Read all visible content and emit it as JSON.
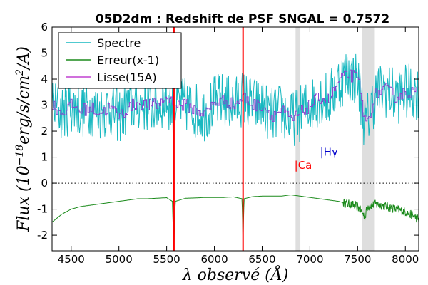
{
  "chart_data": {
    "type": "line",
    "title": "05D2dm : Redshift de PSF SNGAL = 0.7572",
    "xlabel": "λ observé (Å)",
    "ylabel": "Flux (10^-18 erg/s/cm^2/A)",
    "ylabel_parts": {
      "a": "Flux (10",
      "exp": "−18",
      "b": "erg/s/cm",
      "sup2": "2",
      "c": "/A)"
    },
    "xlim": [
      4300,
      8140
    ],
    "ylim": [
      -2.6,
      6
    ],
    "xticks": [
      4500,
      5000,
      5500,
      6000,
      6500,
      7000,
      7500,
      8000
    ],
    "yticks": [
      -2,
      -1,
      0,
      1,
      2,
      3,
      4,
      5,
      6
    ],
    "legend": {
      "placement": "top-left",
      "entries": [
        {
          "label": "Spectre",
          "color": "#17b8c0"
        },
        {
          "label": "Erreur(x-1)",
          "color": "#1a8a1a"
        },
        {
          "label": "Lisse(15A)",
          "color": "#c040d0"
        }
      ]
    },
    "colors": {
      "spectre": "#17b8c0",
      "erreur": "#1a8a1a",
      "lisse": "#8a44d0",
      "skyline": "#ff0000",
      "band": "#dedede",
      "ca": "#ff0000",
      "hy": "#0000cc"
    },
    "series": [
      {
        "name": "Spectre",
        "x": [
          4300,
          4400,
          4500,
          4600,
          4700,
          4800,
          4900,
          5000,
          5100,
          5200,
          5300,
          5400,
          5500,
          5550,
          5600,
          5700,
          5800,
          5900,
          6000,
          6100,
          6200,
          6300,
          6400,
          6500,
          6600,
          6700,
          6800,
          6900,
          7000,
          7100,
          7200,
          7300,
          7400,
          7500,
          7580,
          7650,
          7700,
          7800,
          7900,
          8000,
          8100,
          8140
        ],
        "y": [
          3.0,
          2.7,
          3.0,
          2.8,
          2.9,
          2.7,
          2.9,
          2.6,
          2.9,
          3.1,
          3.0,
          3.0,
          3.3,
          2.9,
          3.0,
          3.0,
          2.8,
          2.7,
          3.1,
          3.2,
          3.0,
          3.3,
          3.0,
          3.0,
          2.6,
          2.8,
          2.4,
          2.7,
          3.0,
          3.3,
          3.2,
          3.9,
          4.2,
          4.0,
          2.2,
          3.0,
          3.5,
          3.6,
          3.3,
          3.5,
          3.5,
          3.5
        ],
        "noise": 1.1
      },
      {
        "name": "Erreur(x-1)",
        "x": [
          4300,
          4400,
          4500,
          4600,
          4700,
          4800,
          4900,
          5000,
          5100,
          5200,
          5300,
          5400,
          5500,
          5560,
          5575,
          5590,
          5700,
          5800,
          5900,
          6000,
          6100,
          6200,
          6290,
          6300,
          6310,
          6400,
          6500,
          6600,
          6700,
          6800,
          6900,
          7000,
          7100,
          7200,
          7300,
          7400,
          7500,
          7580,
          7600,
          7700,
          7800,
          7900,
          8000,
          8100,
          8140
        ],
        "y": [
          -1.5,
          -1.2,
          -1.0,
          -0.9,
          -0.85,
          -0.8,
          -0.75,
          -0.7,
          -0.65,
          -0.6,
          -0.6,
          -0.58,
          -0.56,
          -0.7,
          -2.6,
          -0.7,
          -0.58,
          -0.57,
          -0.55,
          -0.55,
          -0.55,
          -0.53,
          -0.6,
          -2.3,
          -0.6,
          -0.52,
          -0.5,
          -0.5,
          -0.5,
          -0.45,
          -0.5,
          -0.55,
          -0.6,
          -0.65,
          -0.7,
          -0.8,
          -0.9,
          -1.3,
          -0.9,
          -0.8,
          -0.9,
          -1.0,
          -1.1,
          -1.3,
          -1.4
        ]
      },
      {
        "name": "Lisse(15A)",
        "x": [
          4300,
          4400,
          4500,
          4600,
          4700,
          4800,
          4900,
          5000,
          5100,
          5200,
          5300,
          5400,
          5500,
          5600,
          5700,
          5800,
          5900,
          6000,
          6100,
          6200,
          6300,
          6400,
          6500,
          6600,
          6700,
          6800,
          6900,
          7000,
          7100,
          7200,
          7300,
          7400,
          7500,
          7580,
          7650,
          7700,
          7800,
          7900,
          8000,
          8100,
          8140
        ],
        "y": [
          3.0,
          2.7,
          3.0,
          2.8,
          2.9,
          2.7,
          2.9,
          2.6,
          2.9,
          3.1,
          3.0,
          3.0,
          3.3,
          3.0,
          3.0,
          2.8,
          2.7,
          3.1,
          3.2,
          3.0,
          3.3,
          3.0,
          3.0,
          2.6,
          2.8,
          2.4,
          2.7,
          3.0,
          3.3,
          3.2,
          3.9,
          4.2,
          4.0,
          2.2,
          3.0,
          3.5,
          3.6,
          3.3,
          3.5,
          3.5,
          3.5
        ]
      }
    ],
    "sky_lines_x": [
      5577,
      6300
    ],
    "bands": [
      [
        6850,
        6900
      ],
      [
        7550,
        7680
      ]
    ],
    "zero_line": 0,
    "annotations": [
      {
        "text": "|Ca",
        "x": 6930,
        "y": 0.55,
        "color": "#ff0000"
      },
      {
        "text": "|Hγ",
        "x": 7200,
        "y": 1.05,
        "color": "#0000cc"
      }
    ]
  }
}
